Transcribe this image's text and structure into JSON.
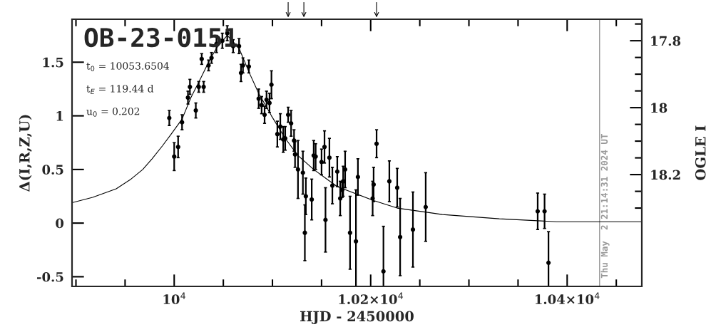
{
  "chart_data": {
    "type": "scatter",
    "title": "OB-23-0151",
    "xlabel": "HJD - 2450000",
    "ylabel": "Δ(I,R,Z,U)",
    "y2label": "OGLE I",
    "annotations": [
      "t$_{0}$ = 10053.6504",
      "t$_{E}$ = 119.44 d",
      "u$_{0}$ = 0.202",
      "Thu May  2 21:14:31 2024 UT"
    ],
    "xlim": [
      9896,
      10476
    ],
    "ylim": [
      -0.59,
      1.9
    ],
    "y2lim": [
      18.534,
      17.736
    ],
    "xticks": [
      {
        "value": 9900,
        "label": null
      },
      {
        "value": 9950,
        "label": null
      },
      {
        "value": 10000,
        "label": "10$^{4}$"
      },
      {
        "value": 10050,
        "label": null
      },
      {
        "value": 10100,
        "label": null
      },
      {
        "value": 10150,
        "label": null
      },
      {
        "value": 10200,
        "label": "1.02×10$^{4}$"
      },
      {
        "value": 10250,
        "label": null
      },
      {
        "value": 10300,
        "label": null
      },
      {
        "value": 10350,
        "label": null
      },
      {
        "value": 10400,
        "label": "1.04×10$^{4}$"
      },
      {
        "value": 10450,
        "label": null
      }
    ],
    "yticks": [
      -0.5,
      0,
      0.5,
      1,
      1.5
    ],
    "y2ticks": [
      {
        "value": 17.75,
        "label": null
      },
      17.8,
      {
        "value": 17.85,
        "label": null
      },
      {
        "value": 17.9,
        "label": null
      },
      {
        "value": 17.95,
        "label": null
      },
      18,
      {
        "value": 18.05,
        "label": null
      },
      {
        "value": 18.1,
        "label": null
      },
      {
        "value": 18.15,
        "label": null
      },
      18.2,
      {
        "value": 18.25,
        "label": null
      },
      {
        "value": 18.3,
        "label": null
      }
    ],
    "grid": false,
    "marker": "circle",
    "ref_lines": [
      {
        "axis": "x",
        "value": 10433,
        "color": "#999999"
      }
    ],
    "series": [
      {
        "color": "#000000",
        "x": [
          9995,
          10000,
          10004,
          10008,
          10014,
          10016,
          10022,
          10025,
          10028,
          10030,
          10035,
          10038,
          10043,
          10049,
          10054,
          10060,
          10066,
          10068,
          10070,
          10076,
          10086,
          10089,
          10092,
          10094,
          10097,
          10099,
          10105,
          10108,
          10111,
          10113,
          10116,
          10119,
          10122,
          10123,
          10126,
          10131,
          10133,
          10134,
          10140,
          10142,
          10144,
          10150,
          10153,
          10154,
          10158,
          10161,
          10166,
          10169,
          10171,
          10172,
          10174,
          10179,
          10185,
          10187,
          10202,
          10203,
          10206,
          10213,
          10219,
          10227,
          10230,
          10243,
          10256,
          10370,
          10377,
          10381
        ],
        "values": [
          0.98,
          0.62,
          0.71,
          0.94,
          1.17,
          1.27,
          1.05,
          1.27,
          1.53,
          1.27,
          1.47,
          1.54,
          1.67,
          1.7,
          1.77,
          1.65,
          1.65,
          1.4,
          1.47,
          1.46,
          1.16,
          1.1,
          1.01,
          1.15,
          1.12,
          1.29,
          0.83,
          0.9,
          0.78,
          0.79,
          1.01,
          0.93,
          0.77,
          0.64,
          0.5,
          0.47,
          -0.09,
          0.25,
          0.22,
          0.63,
          0.62,
          0.57,
          0.71,
          0.03,
          0.61,
          0.35,
          0.48,
          0.23,
          0.31,
          0.39,
          0.5,
          -0.09,
          -0.17,
          0.43,
          0.23,
          0.36,
          0.74,
          -0.45,
          0.39,
          0.33,
          -0.13,
          -0.06,
          0.15,
          0.11,
          0.11,
          -0.37
        ],
        "errors": [
          0.07,
          0.13,
          0.1,
          0.07,
          0.06,
          0.07,
          0.07,
          0.05,
          0.05,
          0.05,
          0.05,
          0.05,
          0.08,
          0.07,
          0.07,
          0.06,
          0.07,
          0.08,
          0.07,
          0.06,
          0.09,
          0.08,
          0.08,
          0.08,
          0.09,
          0.13,
          0.12,
          0.12,
          0.12,
          0.11,
          0.07,
          0.12,
          0.1,
          0.12,
          0.27,
          0.2,
          0.26,
          0.17,
          0.19,
          0.14,
          0.12,
          0.12,
          0.15,
          0.3,
          0.18,
          0.17,
          0.14,
          0.16,
          0.07,
          0.14,
          0.17,
          0.34,
          [
            -0.59,
            0.31
          ],
          0.17,
          0.16,
          0.16,
          0.13,
          [
            -0.59,
            -0.03
          ],
          0.19,
          0.18,
          0.36,
          0.35,
          0.32,
          0.17,
          0.16,
          [
            -0.59,
            -0.08
          ]
        ]
      },
      {
        "type": "line",
        "color": "#000000",
        "marker": "none",
        "x": [
          9896,
          9917,
          9941,
          9956,
          9968,
          9977.5,
          9988,
          9997,
          10008,
          10017,
          10028,
          10035,
          10043,
          10054,
          10066,
          10077,
          10086,
          10099,
          10113,
          10126,
          10142,
          10157,
          10166,
          10203,
          10227,
          10258,
          10273,
          10331,
          10389,
          10476
        ],
        "values": [
          0.19,
          0.24,
          0.32,
          0.41,
          0.5,
          0.6,
          0.72,
          0.83,
          0.97,
          1.17,
          1.37,
          1.5,
          1.63,
          1.75,
          1.63,
          1.39,
          1.21,
          1.0,
          0.79,
          0.63,
          0.5,
          0.4,
          0.34,
          0.21,
          0.14,
          0.1,
          0.08,
          0.04,
          0.013,
          0.013
        ]
      }
    ]
  }
}
